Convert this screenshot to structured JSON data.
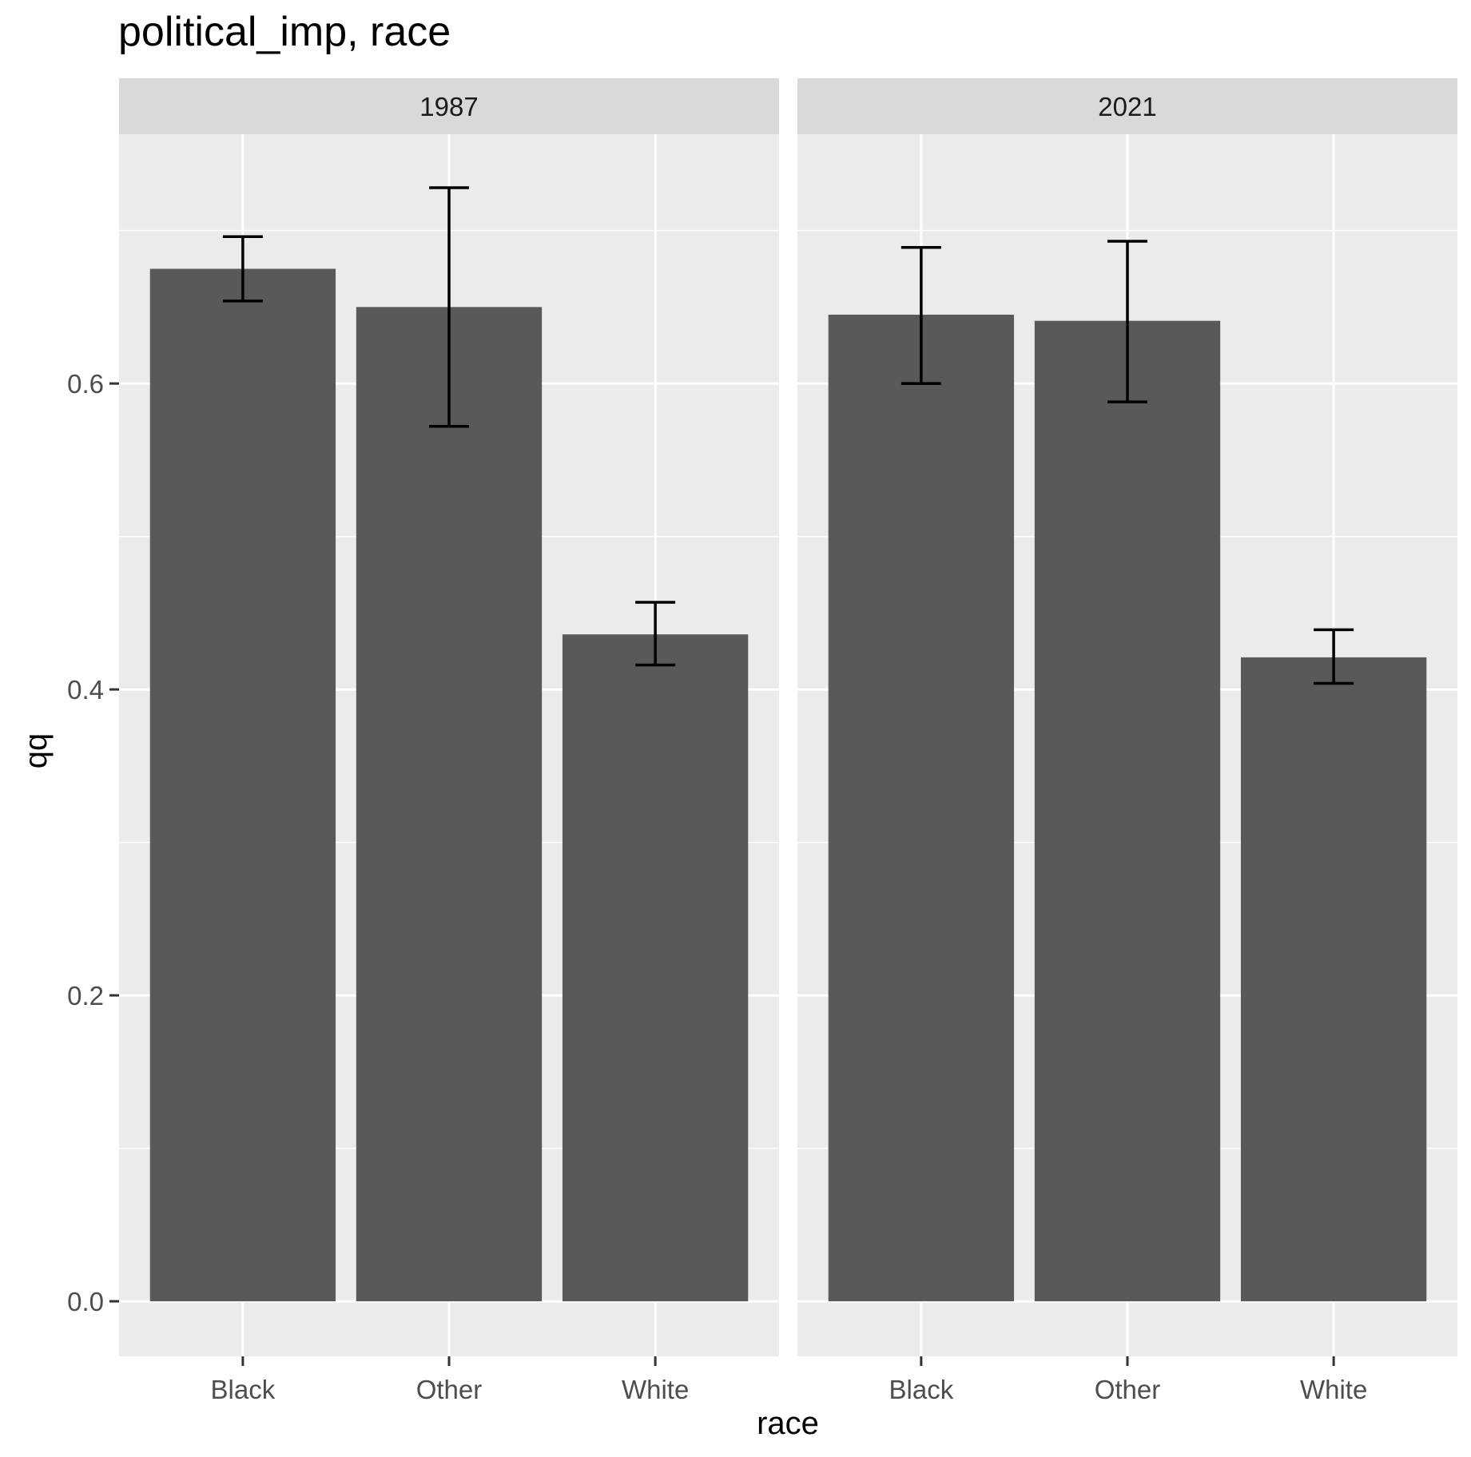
{
  "chart_data": {
    "type": "bar",
    "title": "political_imp, race",
    "xlabel": "race",
    "ylabel": "qq",
    "categories": [
      "Black",
      "Other",
      "White"
    ],
    "ylim": [
      -0.036,
      0.763
    ],
    "yticks": [
      0.0,
      0.2,
      0.4,
      0.6
    ],
    "ytick_labels": [
      "0.0",
      "0.2",
      "0.4",
      "0.6"
    ],
    "grid": true,
    "legend": "none",
    "facets": [
      {
        "label": "1987",
        "values": [
          0.675,
          0.65,
          0.436
        ],
        "err_low": [
          0.654,
          0.572,
          0.416
        ],
        "err_high": [
          0.696,
          0.728,
          0.457
        ]
      },
      {
        "label": "2021",
        "values": [
          0.645,
          0.641,
          0.421
        ],
        "err_low": [
          0.6,
          0.588,
          0.404
        ],
        "err_high": [
          0.689,
          0.693,
          0.439
        ]
      }
    ],
    "colors": {
      "bar": "#595959",
      "panel": "#ebebeb",
      "strip": "#d9d9d9",
      "grid": "#ffffff",
      "errorbar": "#000000",
      "tick_text": "#4d4d4d"
    }
  }
}
